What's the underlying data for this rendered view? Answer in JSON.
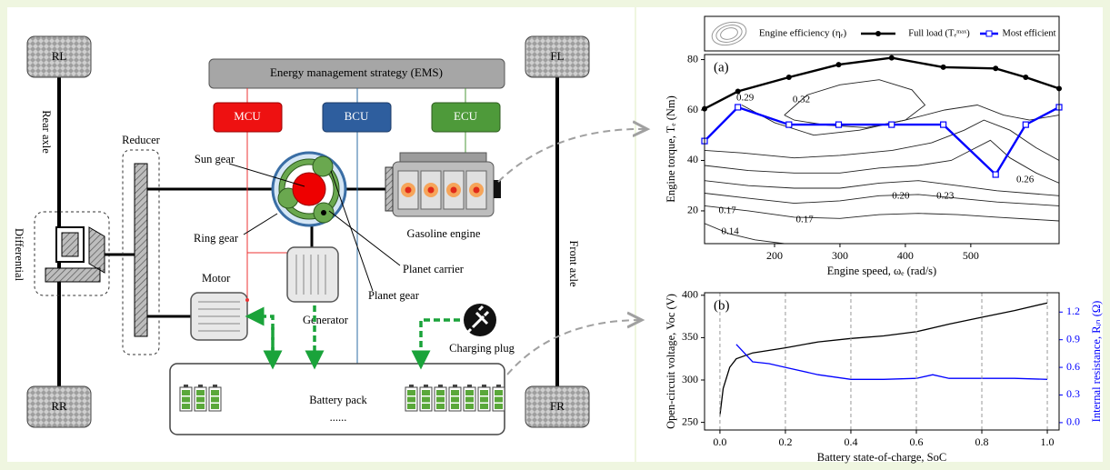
{
  "diagram": {
    "wheels": {
      "rl": "RL",
      "fl": "FL",
      "rr": "RR",
      "fr": "FR"
    },
    "rear_axle": "Rear axle",
    "front_axle": "Front axle",
    "differential": "Differential",
    "reducer": "Reducer",
    "ems": "Energy management strategy (EMS)",
    "mcu": "MCU",
    "bcu": "BCU",
    "ecu": "ECU",
    "sun_gear": "Sun gear",
    "ring_gear": "Ring gear",
    "planet_carrier": "Planet carrier",
    "planet_gear": "Planet gear",
    "gasoline_engine": "Gasoline engine",
    "motor": "Motor",
    "generator": "Generator",
    "charging_plug": "Charging plug",
    "battery_pack": "Battery pack",
    "ellipsis": "......"
  },
  "chart_data": [
    {
      "type": "line",
      "panel_label": "(a)",
      "x_label": "Engine speed, ωₑ (rad/s)",
      "y_label": "Engine torque, Tₑ (Nm)",
      "legend": "top",
      "contour_legend": "Engine efficiency (ηₑ)",
      "xlim": [
        93,
        635
      ],
      "xticks": [
        200,
        300,
        400,
        500
      ],
      "ylim": [
        7,
        82
      ],
      "yticks": [
        20,
        40,
        60,
        80
      ],
      "x": [
        93,
        144,
        222,
        298,
        379,
        458,
        538,
        584,
        635
      ],
      "series": [
        {
          "name": "Full load (Tₑᵐᵃˣ)",
          "color": "#000000",
          "marker": "circle",
          "values": [
            60.5,
            67.4,
            73,
            78,
            80.7,
            77,
            76.5,
            73,
            68.5
          ]
        },
        {
          "name": "Most efficient",
          "color": "#0000ff",
          "marker": "square",
          "values": [
            47.7,
            61.1,
            54.2,
            54.2,
            54.2,
            54.2,
            34.4,
            54.2,
            61.1
          ]
        }
      ],
      "contours": [
        {
          "x": [
            93,
            130,
            170,
            215
          ],
          "y": [
            15,
            11,
            8.5,
            7
          ]
        },
        {
          "x": [
            93,
            160,
            230,
            300,
            360,
            420,
            480,
            540,
            635
          ],
          "y": [
            22,
            20,
            17.5,
            17,
            18.5,
            19,
            18.5,
            17.5,
            16
          ]
        },
        {
          "x": [
            93,
            160,
            230,
            300,
            360,
            420,
            480,
            540,
            635
          ],
          "y": [
            27,
            25,
            23,
            24,
            26,
            26.5,
            25,
            23.5,
            22
          ]
        },
        {
          "x": [
            93,
            160,
            230,
            300,
            360,
            420,
            480,
            540,
            635
          ],
          "y": [
            32,
            30,
            29,
            29,
            31,
            32,
            30,
            28,
            26
          ]
        },
        {
          "x": [
            93,
            160,
            230,
            300,
            360,
            420,
            470,
            500,
            530,
            560,
            600,
            635
          ],
          "y": [
            38,
            36,
            35,
            35,
            37,
            38,
            40,
            44,
            48,
            41,
            35,
            31
          ]
        },
        {
          "x": [
            93,
            150,
            230,
            300,
            380,
            440,
            490,
            520,
            560,
            600,
            635
          ],
          "y": [
            44,
            43,
            41,
            42,
            44,
            47,
            52,
            56,
            52,
            45,
            40
          ]
        },
        {
          "x": [
            150,
            200,
            260,
            330,
            400,
            460,
            510,
            550,
            590,
            635
          ],
          "y": [
            62,
            55,
            50,
            52,
            56,
            60,
            62,
            58,
            56,
            58
          ]
        },
        {
          "x": [
            215,
            250,
            300,
            360,
            410,
            430,
            400,
            340,
            280,
            230,
            215
          ],
          "y": [
            58,
            66,
            70,
            72,
            68,
            62,
            56,
            53,
            54,
            56,
            58
          ]
        }
      ],
      "contour_labels": [
        {
          "text": "0.29",
          "x": 155,
          "y": 64.7
        },
        {
          "text": "0.32",
          "x": 241,
          "y": 64
        },
        {
          "text": "0.26",
          "x": 583,
          "y": 32.2
        },
        {
          "text": "0.20",
          "x": 393,
          "y": 25.7
        },
        {
          "text": "0.23",
          "x": 461,
          "y": 25.7
        },
        {
          "text": "0.17",
          "x": 128,
          "y": 20
        },
        {
          "text": "0.17",
          "x": 246,
          "y": 16.4
        },
        {
          "text": "0.14",
          "x": 132,
          "y": 11.7
        }
      ]
    },
    {
      "type": "line",
      "panel_label": "(b)",
      "x_label": "Battery state-of-charge, SoC",
      "y_label": "Open-circuit voltage, Voc (V)",
      "y2_label": "Internal resistance, Rᵢₙ (Ω)",
      "grid": "x",
      "xlim": [
        -0.047,
        1.036
      ],
      "xticks": [
        {
          "value": 0,
          "label": "0.0"
        },
        0.2,
        0.4,
        0.6,
        0.8,
        {
          "value": 1,
          "label": "1.0"
        }
      ],
      "ylim": [
        241,
        403
      ],
      "yticks": [
        250,
        300,
        350,
        400
      ],
      "y2lim": [
        -0.08,
        1.41
      ],
      "y2ticks": [
        {
          "value": 0,
          "label": "0.0"
        },
        0.3,
        0.6,
        0.9,
        1.2
      ],
      "series": [
        {
          "color": "#000000",
          "x": [
            0,
            0.01,
            0.03,
            0.05,
            0.1,
            0.2,
            0.3,
            0.4,
            0.5,
            0.6,
            0.7,
            0.8,
            0.9,
            1.0
          ],
          "values": [
            258,
            290,
            315,
            325,
            332,
            338,
            345,
            349,
            352,
            357,
            366,
            374,
            382,
            391
          ]
        },
        {
          "color": "#0000ff",
          "axis": "y2",
          "x": [
            0.05,
            0.1,
            0.15,
            0.2,
            0.3,
            0.4,
            0.5,
            0.6,
            0.65,
            0.7,
            0.8,
            0.9,
            1.0
          ],
          "values": [
            0.85,
            0.66,
            0.64,
            0.6,
            0.52,
            0.47,
            0.47,
            0.48,
            0.52,
            0.48,
            0.48,
            0.48,
            0.47
          ]
        }
      ]
    }
  ]
}
